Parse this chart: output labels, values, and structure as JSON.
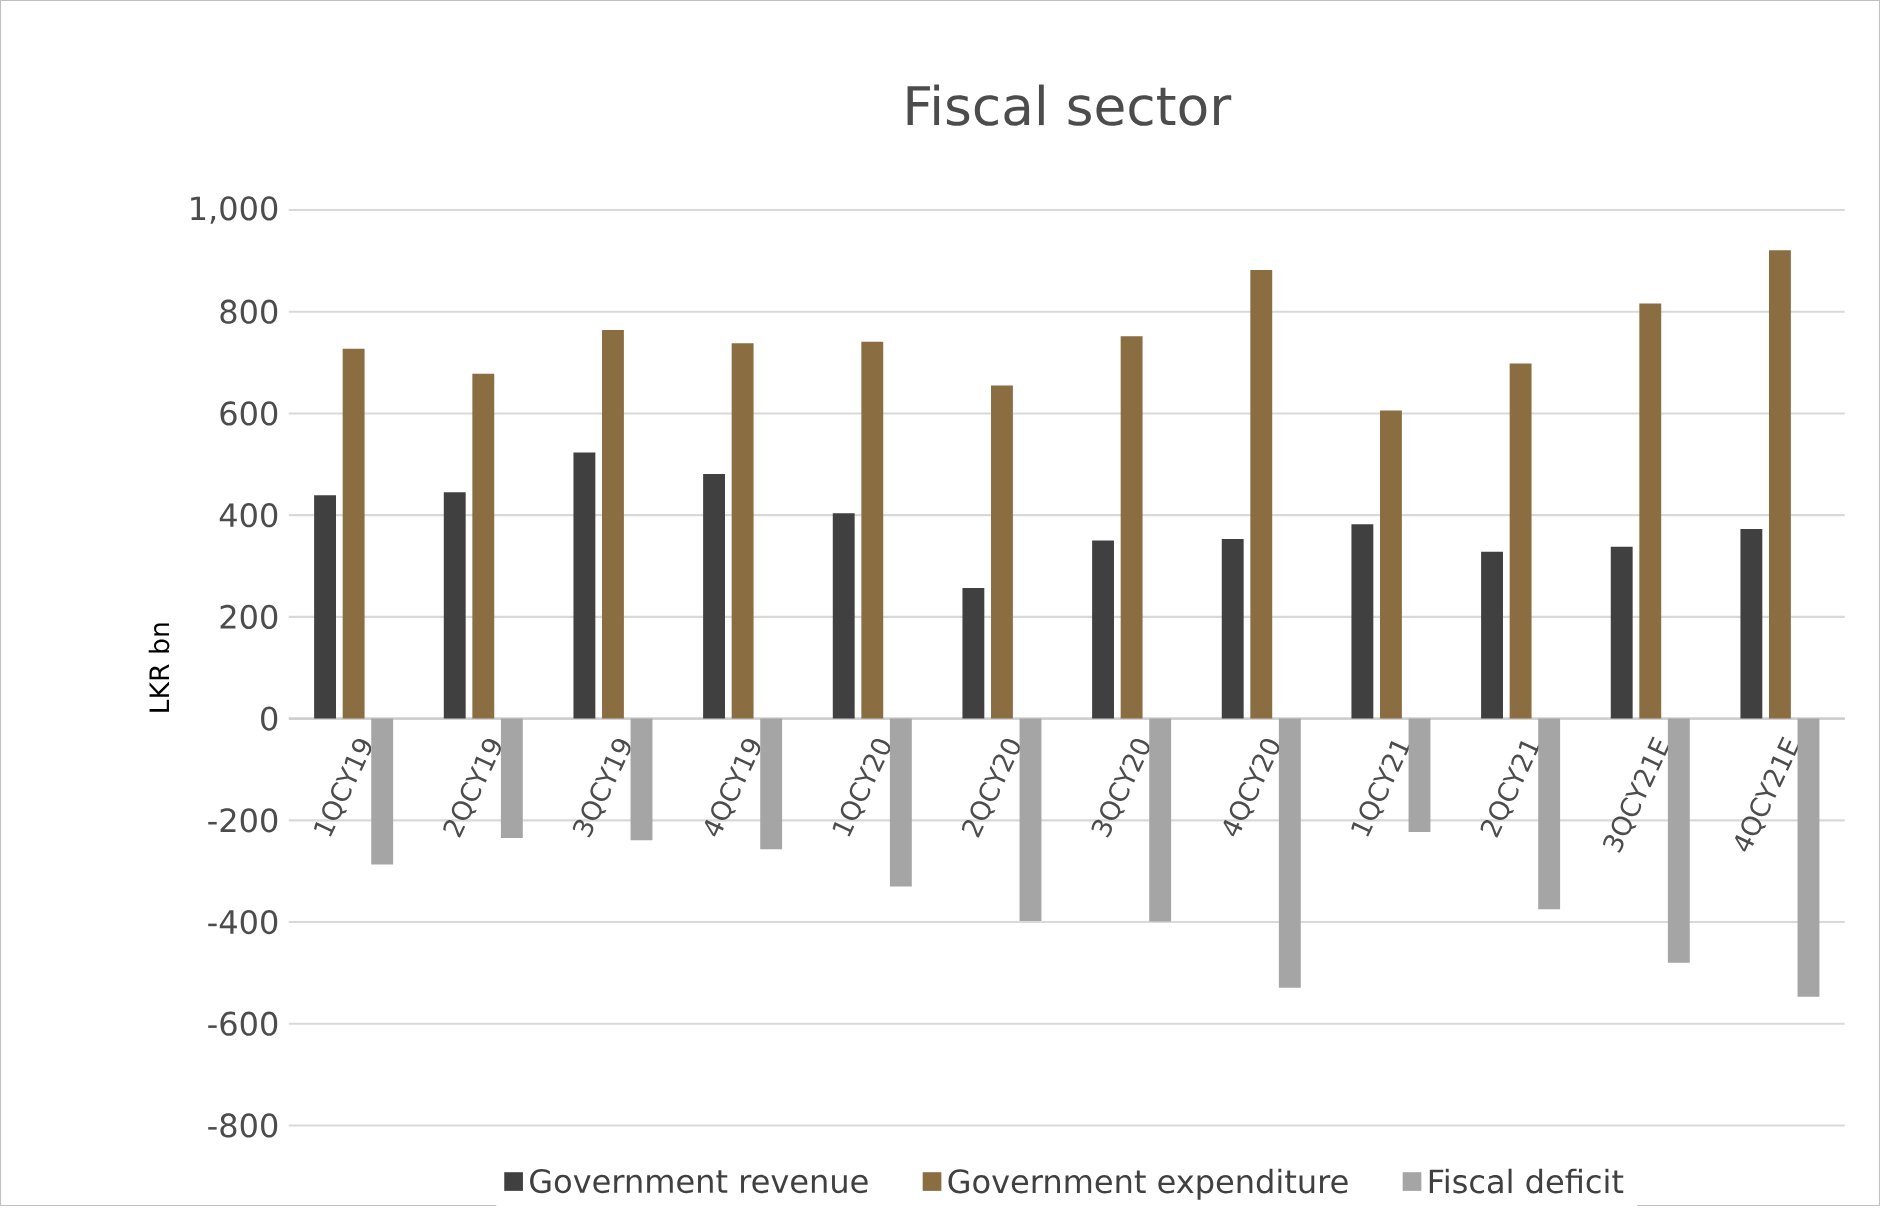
{
  "chart_data": {
    "type": "bar",
    "title": "Fiscal sector",
    "ylabel": "LKR bn",
    "categories": [
      "1QCY19",
      "2QCY19",
      "3QCY19",
      "4QCY19",
      "1QCY20",
      "2QCY20",
      "3QCY20",
      "4QCY20",
      "1QCY21",
      "2QCY21",
      "3QCY21E",
      "4QCY21E"
    ],
    "series": [
      {
        "name": "Government revenue",
        "color": "#404040",
        "values": [
          439,
          445,
          523,
          481,
          404,
          257,
          350,
          353,
          382,
          328,
          338,
          373
        ]
      },
      {
        "name": "Government expenditure",
        "color": "#8b6d42",
        "values": [
          727,
          678,
          764,
          738,
          741,
          655,
          752,
          882,
          606,
          698,
          816,
          921
        ]
      },
      {
        "name": "Fiscal deficit",
        "color": "#a5a5a5",
        "values": [
          -287,
          -235,
          -239,
          -257,
          -330,
          -398,
          -399,
          -529,
          -223,
          -375,
          -480,
          -547
        ]
      }
    ],
    "ylim": [
      -800,
      1000
    ],
    "yticks": [
      -800,
      -600,
      -400,
      -200,
      0,
      200,
      400,
      600,
      800,
      {
        "value": 1000,
        "label": "1,000"
      }
    ],
    "grid": "y",
    "legend": "bottom"
  }
}
